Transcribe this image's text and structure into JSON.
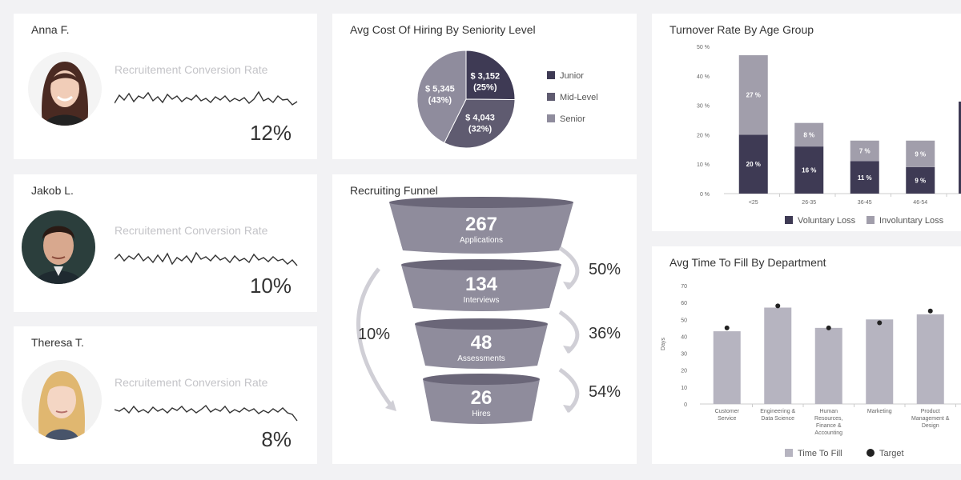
{
  "colors": {
    "dark": "#3e3a54",
    "mid": "#5f5b70",
    "light": "#8f8c9d",
    "bar": "#b6b4c0",
    "funnel_top": "#6a6678",
    "funnel_body": "#8f8c9c"
  },
  "people": [
    {
      "name": "Anna F.",
      "metric_label": "Recruitement Conversion Rate",
      "value": "12%"
    },
    {
      "name": "Jakob L.",
      "metric_label": "Recruitement Conversion Rate",
      "value": "10%"
    },
    {
      "name": "Theresa T.",
      "metric_label": "Recruitement Conversion Rate",
      "value": "8%"
    }
  ],
  "chart_data": [
    {
      "type": "pie",
      "title": "Avg Cost Of Hiring By Seniority Level",
      "slices": [
        {
          "name": "Junior",
          "value": 3152,
          "label": "$ 3,152",
          "pct_label": "(25%)"
        },
        {
          "name": "Mid-Level",
          "value": 4043,
          "label": "$ 4,043",
          "pct_label": "(32%)"
        },
        {
          "name": "Senior",
          "value": 5345,
          "label": "$ 5,345",
          "pct_label": "(43%)"
        }
      ],
      "legend_position": "right"
    },
    {
      "type": "bar",
      "title": "Turnover Rate By Age Group",
      "stacked": true,
      "categories": [
        "<25",
        "26-35",
        "36-45",
        "46-54"
      ],
      "series": [
        {
          "name": "Voluntary Loss",
          "values": [
            20,
            16,
            11,
            9
          ],
          "labels": [
            "20 %",
            "16 %",
            "11 %",
            "9 %"
          ]
        },
        {
          "name": "Involuntary Loss",
          "values": [
            27,
            8,
            7,
            9
          ],
          "labels": [
            "27 %",
            "8 %",
            "7 %",
            "9 %"
          ]
        }
      ],
      "yticks": [
        "0 %",
        "10 %",
        "20 %",
        "30 %",
        "40 %",
        "50 %"
      ],
      "ylim": [
        0,
        50
      ],
      "legend_position": "bottom"
    },
    {
      "type": "funnel",
      "title": "Recruiting Funnel",
      "stages": [
        {
          "value": "267",
          "label": "Applications"
        },
        {
          "value": "134",
          "label": "Interviews"
        },
        {
          "value": "48",
          "label": "Assessments"
        },
        {
          "value": "26",
          "label": "Hires"
        }
      ],
      "step_rates": [
        "50%",
        "36%",
        "54%"
      ],
      "overall_rate": "10%"
    },
    {
      "type": "bar",
      "title": "Avg Time To Fill By Department",
      "ylabel": "Days",
      "categories": [
        [
          "Customer",
          "Service"
        ],
        [
          "Engineering &",
          "Data Science"
        ],
        [
          "Human",
          "Resources,",
          "Finance &",
          "Accounting"
        ],
        [
          "Marketing"
        ],
        [
          "Product",
          "Management &",
          "Design"
        ]
      ],
      "series": [
        {
          "name": "Time To Fill",
          "values": [
            43,
            57,
            45,
            50,
            53
          ]
        },
        {
          "name": "Target",
          "values": [
            45,
            58,
            45,
            48,
            55
          ]
        }
      ],
      "yticks": [
        "0",
        "10",
        "20",
        "30",
        "40",
        "50",
        "60",
        "70"
      ],
      "ylim": [
        0,
        70
      ],
      "legend_position": "bottom"
    }
  ]
}
